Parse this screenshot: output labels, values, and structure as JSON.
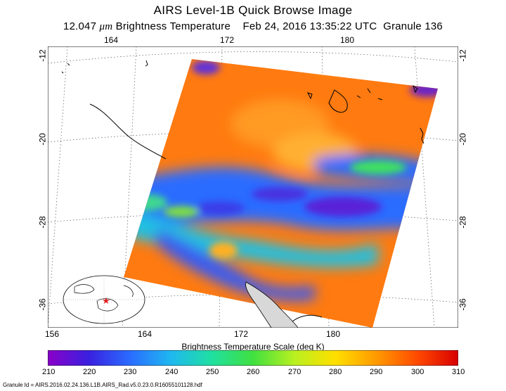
{
  "title": "AIRS Level-1B Quick Browse Image",
  "subtitle": {
    "quantity_prefix": "12.047 ",
    "quantity_unit_symbol": "μm",
    "quantity_suffix": " Brightness Temperature",
    "date": "Feb 24, 2016 13:35:22 UTC",
    "granule": "Granule 136"
  },
  "map": {
    "lon_ticks_top": [
      "164",
      "172",
      "180"
    ],
    "lon_ticks_bottom": [
      "156",
      "164",
      "172",
      "180"
    ],
    "lat_ticks_left": [
      "-12",
      "-20",
      "-28",
      "-36"
    ],
    "lat_ticks_right": [
      "-12",
      "-20",
      "-28",
      "-36"
    ],
    "inset_marker_color": "#e02020"
  },
  "colorbar": {
    "title": "Brightness Temperature Scale (deg K)",
    "labels": [
      "210",
      "220",
      "230",
      "240",
      "250",
      "260",
      "270",
      "280",
      "290",
      "300",
      "310"
    ],
    "colors": [
      "#8a00c8",
      "#3a20e0",
      "#2a6cff",
      "#1fb8f0",
      "#1fe0a0",
      "#40e040",
      "#b8f020",
      "#ffe000",
      "#ff9a00",
      "#ff4a00",
      "#d80000"
    ]
  },
  "footer": "Granule Id = AIRS.2016.02.24.136.L1B.AIRS_Rad.v5.0.23.0.R16055101128.hdf"
}
